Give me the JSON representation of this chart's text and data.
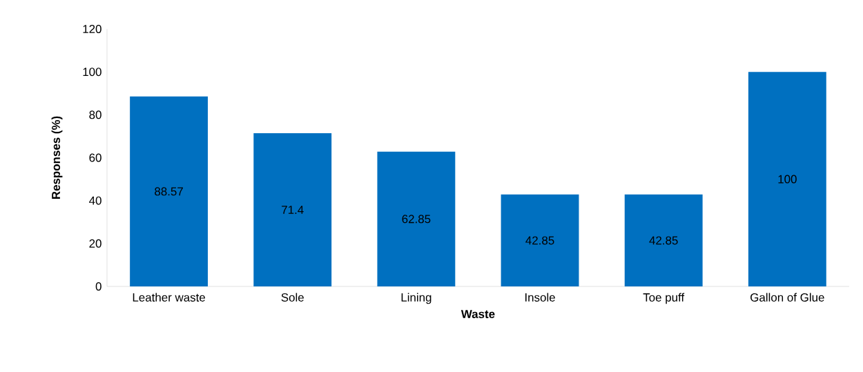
{
  "chart_data": {
    "type": "bar",
    "xlabel": "Waste",
    "ylabel": "Responses (%)",
    "categories": [
      "Leather waste",
      "Sole",
      "Lining",
      "Insole",
      "Toe puff",
      "Gallon of Glue"
    ],
    "values": [
      88.57,
      71.4,
      62.85,
      42.85,
      42.85,
      100
    ],
    "color": "#0070c0",
    "ylim": [
      0,
      120
    ],
    "yticks": [
      0,
      20,
      40,
      60,
      80,
      100,
      120
    ],
    "data_labels": true
  }
}
